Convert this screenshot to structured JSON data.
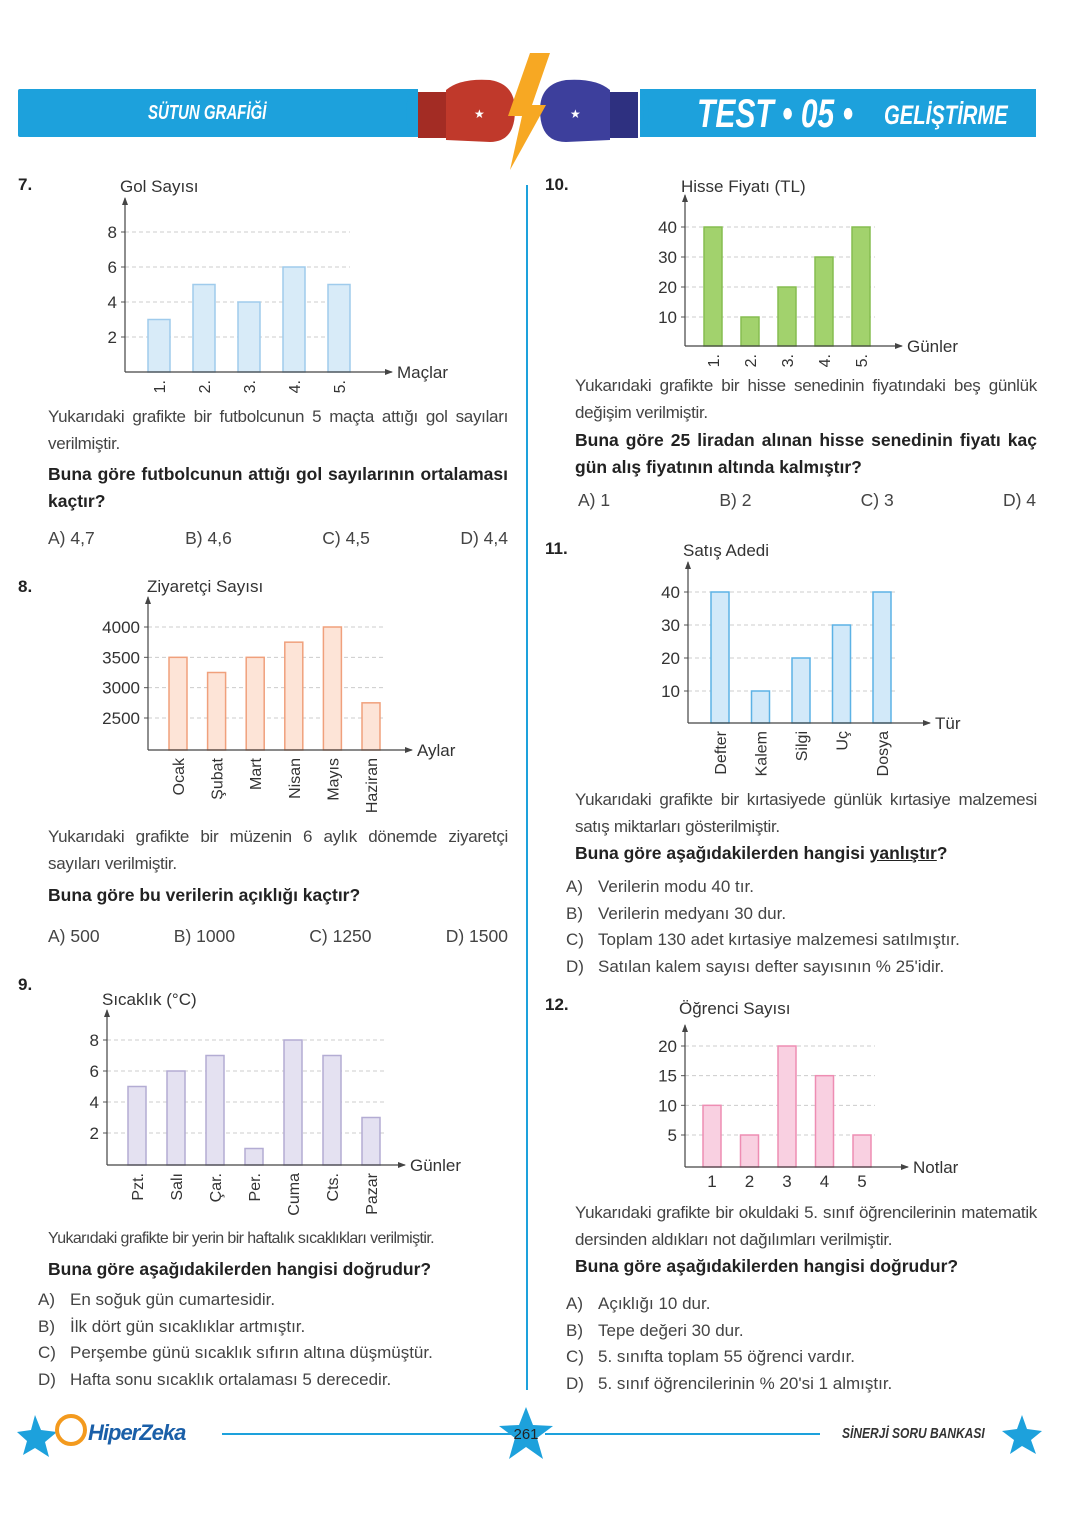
{
  "header": {
    "topic": "SÜTUN GRAFİĞİ",
    "test": "TEST • 05 •",
    "level": "GELİŞTİRME",
    "colors": {
      "band": "#1da1dc",
      "red_glove": "#c0392b",
      "blue_glove": "#3b3f9e",
      "bolt": "#f7a823"
    }
  },
  "footer": {
    "logo": "HiperZeka",
    "page": "261",
    "book": "SİNERJİ SORU BANKASI"
  },
  "questions": [
    {
      "num": "7.",
      "text": "Yukarıdaki grafikte bir futbolcunun 5 maçta attığı gol sayıları verilmiştir.",
      "ask": "Buna göre futbolcunun attığı gol sayılarının ortalaması kaçtır?",
      "options": [
        "A) 4,7",
        "B) 4,6",
        "C) 4,5",
        "D) 4,4"
      ]
    },
    {
      "num": "8.",
      "text": "Yukarıdaki grafikte bir müzenin 6 aylık dönemde ziyaretçi sayıları verilmiştir.",
      "ask": "Buna göre bu verilerin açıklığı kaçtır?",
      "options": [
        "A) 500",
        "B) 1000",
        "C) 1250",
        "D) 1500"
      ]
    },
    {
      "num": "9.",
      "text": "Yukarıdaki grafikte bir yerin bir haftalık sıcaklıkları verilmiştir.",
      "ask": "Buna göre aşağıdakilerden hangisi doğrudur?",
      "options": [
        [
          "A)",
          "En soğuk gün cumartesidir."
        ],
        [
          "B)",
          "İlk dört gün sıcaklıklar artmıştır."
        ],
        [
          "C)",
          "Perşembe günü sıcaklık sıfırın altına düşmüştür."
        ],
        [
          "D)",
          "Hafta sonu sıcaklık ortalaması 5 derecedir."
        ]
      ]
    },
    {
      "num": "10.",
      "text": "Yukarıdaki grafikte bir hisse senedinin fiyatındaki beş günlük değişim verilmiştir.",
      "ask": "Buna göre 25 liradan alınan hisse senedinin fiyatı kaç gün alış fiyatının altında kalmıştır?",
      "options": [
        "A) 1",
        "B) 2",
        "C) 3",
        "D) 4"
      ]
    },
    {
      "num": "11.",
      "text": "Yukarıdaki grafikte bir kırtasiyede günlük kırtasiye malzemesi satış miktarları gösterilmiştir.",
      "ask_prefix": "Buna göre aşağıdakilerden hangisi ",
      "ask_underlined": "yanlıştır",
      "ask_suffix": "?",
      "options": [
        [
          "A)",
          "Verilerin modu 40 tır."
        ],
        [
          "B)",
          "Verilerin medyanı 30 dur."
        ],
        [
          "C)",
          "Toplam 130 adet kırtasiye malzemesi satılmıştır."
        ],
        [
          "D)",
          "Satılan kalem sayısı defter sayısının % 25'idir."
        ]
      ]
    },
    {
      "num": "12.",
      "text": "Yukarıdaki grafikte bir okuldaki 5. sınıf öğrencilerinin matematik dersinden aldıkları not dağılımları verilmiştir.",
      "ask": "Buna göre aşağıdakilerden hangisi doğrudur?",
      "options": [
        [
          "A)",
          "Açıklığı 10 dur."
        ],
        [
          "B)",
          "Tepe değeri 30 dur."
        ],
        [
          "C)",
          "5. sınıfta toplam 55 öğrenci vardır."
        ],
        [
          "D)",
          "5. sınıf öğrencilerinin % 20'si 1 almıştır."
        ]
      ]
    }
  ],
  "chart_data": [
    {
      "type": "bar",
      "ylabel": "Gol Sayısı",
      "xlabel": "Maçlar",
      "categories": [
        "1.",
        "2.",
        "3.",
        "4.",
        "5."
      ],
      "values": [
        3,
        5,
        4,
        6,
        5
      ],
      "yticks": [
        2,
        4,
        6,
        8
      ],
      "grid": true,
      "fill": "#d8ebf8",
      "stroke": "#9fcbec"
    },
    {
      "type": "bar",
      "ylabel": "Ziyaretçi Sayısı",
      "xlabel": "Aylar",
      "categories": [
        "Ocak",
        "Şubat",
        "Mart",
        "Nisan",
        "Mayıs",
        "Haziran"
      ],
      "values": [
        3500,
        3250,
        3500,
        3750,
        4000,
        2750
      ],
      "yticks": [
        2500,
        3000,
        3500,
        4000
      ],
      "grid": true,
      "fill": "#fde4d7",
      "stroke": "#f0a07c"
    },
    {
      "type": "bar",
      "ylabel": "Sıcaklık (°C)",
      "xlabel": "Günler",
      "categories": [
        "Pzt.",
        "Salı",
        "Çar.",
        "Per.",
        "Cuma",
        "Cts.",
        "Pazar"
      ],
      "values": [
        5,
        6,
        7,
        1,
        8,
        7,
        3
      ],
      "yticks": [
        2,
        4,
        6,
        8
      ],
      "grid": true,
      "fill": "#e4e1f1",
      "stroke": "#b3acd3"
    },
    {
      "type": "bar",
      "ylabel": "Hisse Fiyatı (TL)",
      "xlabel": "Günler",
      "categories": [
        "1.",
        "2.",
        "3.",
        "4.",
        "5."
      ],
      "values": [
        40,
        10,
        20,
        30,
        40
      ],
      "yticks": [
        10,
        20,
        30,
        40
      ],
      "grid": true,
      "fill": "#a2d26d",
      "stroke": "#86bd50"
    },
    {
      "type": "bar",
      "ylabel": "Satış Adedi",
      "xlabel": "Tür",
      "categories": [
        "Defter",
        "Kalem",
        "Silgi",
        "Uç",
        "Dosya"
      ],
      "values": [
        40,
        10,
        20,
        30,
        40
      ],
      "yticks": [
        10,
        20,
        30,
        40
      ],
      "grid": true,
      "fill": "#d2e9f9",
      "stroke": "#5cb2e5"
    },
    {
      "type": "bar",
      "ylabel": "Öğrenci Sayısı",
      "xlabel": "Notlar",
      "categories": [
        "1",
        "2",
        "3",
        "4",
        "5"
      ],
      "values": [
        10,
        5,
        20,
        15,
        5
      ],
      "yticks": [
        5,
        10,
        15,
        20
      ],
      "grid": true,
      "fill": "#f9d0e1",
      "stroke": "#ee8db3"
    }
  ]
}
